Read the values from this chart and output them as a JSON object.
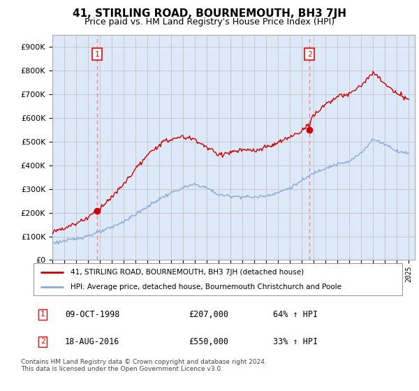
{
  "title": "41, STIRLING ROAD, BOURNEMOUTH, BH3 7JH",
  "subtitle": "Price paid vs. HM Land Registry's House Price Index (HPI)",
  "legend_line1": "41, STIRLING ROAD, BOURNEMOUTH, BH3 7JH (detached house)",
  "legend_line2": "HPI: Average price, detached house, Bournemouth Christchurch and Poole",
  "annotation1_date": "09-OCT-1998",
  "annotation1_price": "£207,000",
  "annotation1_hpi": "64% ↑ HPI",
  "annotation2_date": "18-AUG-2016",
  "annotation2_price": "£550,000",
  "annotation2_hpi": "33% ↑ HPI",
  "sale1_year": 1998.77,
  "sale1_price": 207000,
  "sale2_year": 2016.63,
  "sale2_price": 550000,
  "price_line_color": "#cc0000",
  "hpi_line_color": "#88aadd",
  "vline_color": "#ee8888",
  "background_color": "#dde8f8",
  "plot_bg_color": "#ffffff",
  "grid_color": "#bbbbbb",
  "footer_text": "Contains HM Land Registry data © Crown copyright and database right 2024.\nThis data is licensed under the Open Government Licence v3.0.",
  "ylim": [
    0,
    950000
  ],
  "xlim_start": 1995.0,
  "xlim_end": 2025.5,
  "hpi_waypoints_x": [
    1995,
    1996,
    1997,
    1998,
    1999,
    2000,
    2001,
    2002,
    2003,
    2004,
    2005,
    2006,
    2007,
    2008,
    2009,
    2010,
    2011,
    2012,
    2013,
    2014,
    2015,
    2016,
    2017,
    2018,
    2019,
    2020,
    2021,
    2022,
    2023,
    2024,
    2025
  ],
  "hpi_waypoints_y": [
    72000,
    80000,
    90000,
    103000,
    118000,
    138000,
    163000,
    193000,
    225000,
    258000,
    283000,
    305000,
    320000,
    305000,
    275000,
    270000,
    268000,
    265000,
    272000,
    285000,
    305000,
    335000,
    368000,
    390000,
    405000,
    415000,
    455000,
    510000,
    490000,
    460000,
    450000
  ],
  "price_waypoints_x": [
    1995,
    1996,
    1997,
    1998,
    1999,
    2000,
    2001,
    2002,
    2003,
    2004,
    2005,
    2006,
    2007,
    2008,
    2009,
    2010,
    2011,
    2012,
    2013,
    2014,
    2015,
    2016,
    2017,
    2018,
    2019,
    2020,
    2021,
    2022,
    2023,
    2024,
    2025
  ],
  "price_waypoints_y": [
    120000,
    135000,
    155000,
    180000,
    220000,
    265000,
    320000,
    385000,
    440000,
    490000,
    510000,
    520000,
    510000,
    475000,
    445000,
    455000,
    465000,
    460000,
    475000,
    495000,
    520000,
    545000,
    610000,
    660000,
    690000,
    700000,
    740000,
    790000,
    745000,
    700000,
    680000
  ]
}
